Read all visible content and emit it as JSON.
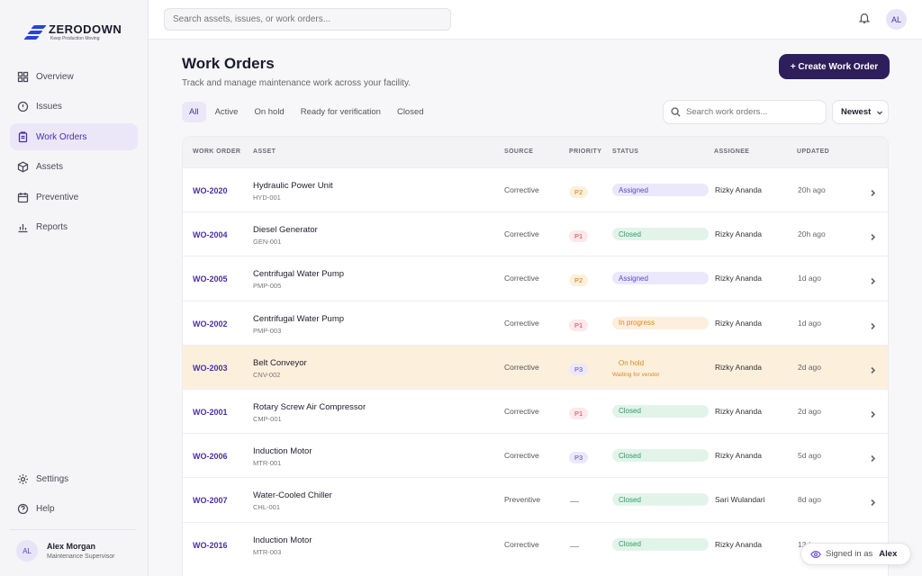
{
  "app": {
    "logo_name": "ZERODOWN",
    "logo_tagline": "Keep Production Moving",
    "brand_color": "#2346d8",
    "accent_color": "#2e1e5c"
  },
  "sidebar": {
    "items": [
      {
        "label": "Overview",
        "icon": "grid-icon",
        "active": false
      },
      {
        "label": "Issues",
        "icon": "alert-circle-icon",
        "active": false
      },
      {
        "label": "Work Orders",
        "icon": "clipboard-icon",
        "active": true
      },
      {
        "label": "Assets",
        "icon": "cube-icon",
        "active": false
      },
      {
        "label": "Preventive",
        "icon": "calendar-icon",
        "active": false
      },
      {
        "label": "Reports",
        "icon": "bar-chart-icon",
        "active": false
      }
    ],
    "bottom_items": [
      {
        "label": "Settings",
        "icon": "gear-icon"
      },
      {
        "label": "Help",
        "icon": "help-circle-icon"
      }
    ],
    "user": {
      "initials": "AL",
      "name": "Alex Morgan",
      "role": "Maintenance Supervisor"
    }
  },
  "topbar": {
    "search_placeholder": "Search assets, issues, or work orders...",
    "avatar_initials": "AL"
  },
  "page": {
    "title": "Work Orders",
    "subtitle": "Track and manage maintenance work across your facility.",
    "create_label": "+ Create Work Order",
    "tabs": [
      {
        "label": "All",
        "active": true
      },
      {
        "label": "Active",
        "active": false
      },
      {
        "label": "On hold",
        "active": false
      },
      {
        "label": "Ready for verification",
        "active": false
      },
      {
        "label": "Closed",
        "active": false
      }
    ],
    "search_placeholder": "Search work orders...",
    "sort_label": "Newest"
  },
  "table": {
    "columns": [
      "WORK ORDER",
      "ASSET",
      "SOURCE",
      "PRIORITY",
      "STATUS",
      "ASSIGNEE",
      "UPDATED"
    ],
    "rows": [
      {
        "id": "WO-2020",
        "asset": "Hydraulic Power Unit",
        "code": "HYD-001",
        "source": "Corrective",
        "priority": "P2",
        "status": "Assigned",
        "status_kind": "assigned",
        "note": "",
        "assignee": "Rizky Ananda",
        "updated": "20h ago",
        "highlight": false
      },
      {
        "id": "WO-2004",
        "asset": "Diesel Generator",
        "code": "GEN-001",
        "source": "Corrective",
        "priority": "P1",
        "status": "Closed",
        "status_kind": "closed",
        "note": "",
        "assignee": "Rizky Ananda",
        "updated": "20h ago",
        "highlight": false
      },
      {
        "id": "WO-2005",
        "asset": "Centrifugal Water Pump",
        "code": "PMP-005",
        "source": "Corrective",
        "priority": "P2",
        "status": "Assigned",
        "status_kind": "assigned",
        "note": "",
        "assignee": "Rizky Ananda",
        "updated": "1d ago",
        "highlight": false
      },
      {
        "id": "WO-2002",
        "asset": "Centrifugal Water Pump",
        "code": "PMP-003",
        "source": "Corrective",
        "priority": "P1",
        "status": "In progress",
        "status_kind": "inprogress",
        "note": "",
        "assignee": "Rizky Ananda",
        "updated": "1d ago",
        "highlight": false
      },
      {
        "id": "WO-2003",
        "asset": "Belt Conveyor",
        "code": "CNV-002",
        "source": "Corrective",
        "priority": "P3",
        "status": "On hold",
        "status_kind": "onhold",
        "note": "Waiting for vendor",
        "assignee": "Rizky Ananda",
        "updated": "2d ago",
        "highlight": true
      },
      {
        "id": "WO-2001",
        "asset": "Rotary Screw Air Compressor",
        "code": "CMP-001",
        "source": "Corrective",
        "priority": "P1",
        "status": "Closed",
        "status_kind": "closed",
        "note": "",
        "assignee": "Rizky Ananda",
        "updated": "2d ago",
        "highlight": false
      },
      {
        "id": "WO-2006",
        "asset": "Induction Motor",
        "code": "MTR-001",
        "source": "Corrective",
        "priority": "P3",
        "status": "Closed",
        "status_kind": "closed",
        "note": "",
        "assignee": "Rizky Ananda",
        "updated": "5d ago",
        "highlight": false
      },
      {
        "id": "WO-2007",
        "asset": "Water-Cooled Chiller",
        "code": "CHL-001",
        "source": "Preventive",
        "priority": "—",
        "status": "Closed",
        "status_kind": "closed",
        "note": "",
        "assignee": "Sari Wulandari",
        "updated": "8d ago",
        "highlight": false
      },
      {
        "id": "WO-2016",
        "asset": "Induction Motor",
        "code": "MTR-003",
        "source": "Corrective",
        "priority": "—",
        "status": "Closed",
        "status_kind": "closed",
        "note": "",
        "assignee": "Rizky Ananda",
        "updated": "13d ago",
        "highlight": false
      }
    ]
  },
  "signed_in": {
    "prefix": "Signed in as",
    "name": "Alex"
  }
}
